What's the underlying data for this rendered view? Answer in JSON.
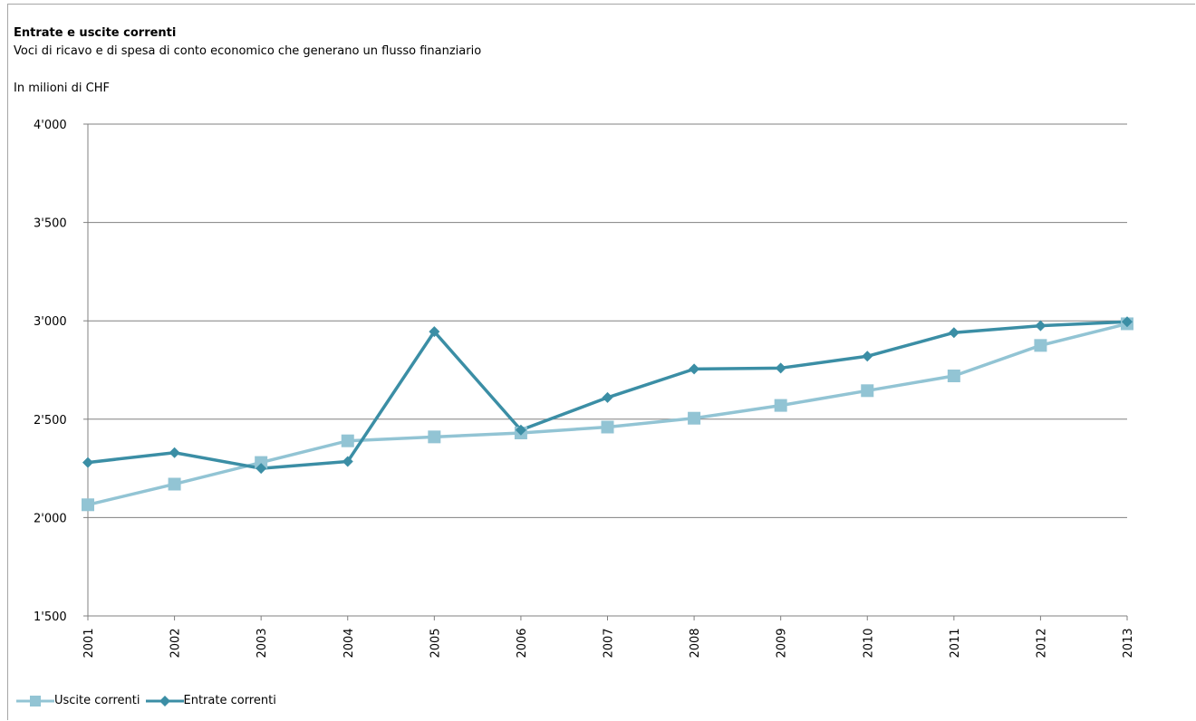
{
  "chart_data": {
    "type": "line",
    "title": "Entrate e uscite correnti",
    "subtitle": "Voci di ricavo e di spesa di conto economico che generano un flusso finanziario",
    "unit_label": "In milioni di CHF",
    "categories": [
      "2001",
      "2002",
      "2003",
      "2004",
      "2005",
      "2006",
      "2007",
      "2008",
      "2009",
      "2010",
      "2011",
      "2012",
      "2013"
    ],
    "y_ticks": [
      "1'500",
      "2'000",
      "2'500",
      "3'000",
      "3'500",
      "4'000"
    ],
    "ylim": [
      1500,
      4000
    ],
    "grid": true,
    "legend_position": "bottom-left",
    "series": [
      {
        "name": "Uscite correnti",
        "color": "#92c4d4",
        "marker": "square",
        "values": [
          2065,
          2170,
          2280,
          2390,
          2410,
          2430,
          2460,
          2505,
          2570,
          2645,
          2720,
          2875,
          2985
        ]
      },
      {
        "name": "Entrate correnti",
        "color": "#3b8ea5",
        "marker": "diamond",
        "values": [
          2280,
          2330,
          2250,
          2285,
          2945,
          2445,
          2610,
          2755,
          2760,
          2820,
          2940,
          2975,
          2995
        ]
      }
    ]
  }
}
